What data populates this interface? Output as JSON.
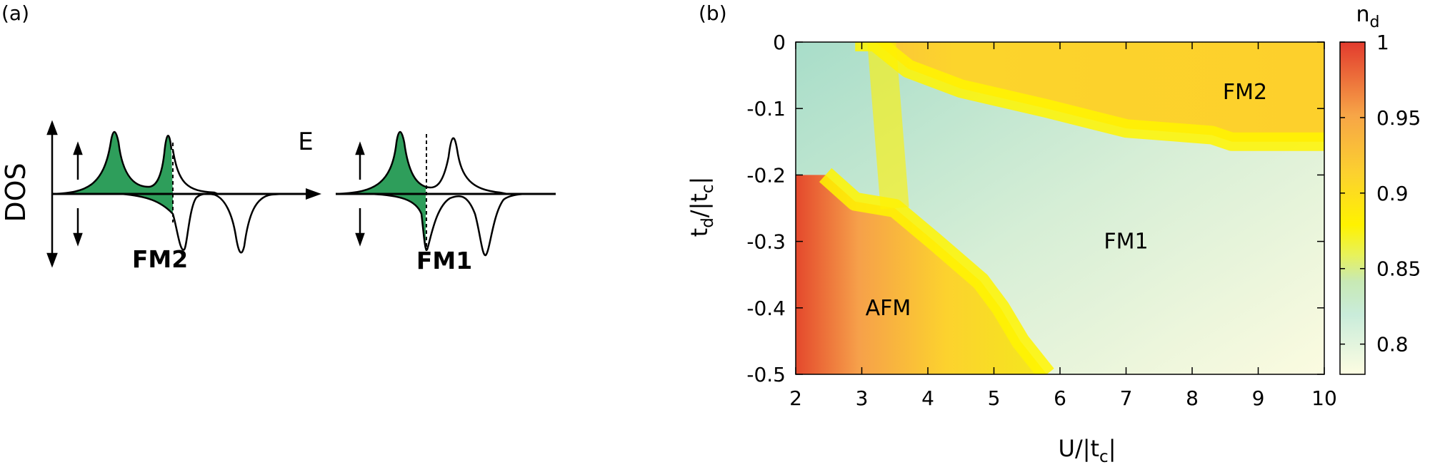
{
  "panel_a": {
    "label": "(a)",
    "y_axis_label": "DOS",
    "x_axis_label": "E",
    "diagrams": [
      "FM2",
      "FM1"
    ],
    "colors": {
      "fill": "#2e9e5b",
      "stroke": "#000000"
    }
  },
  "panel_b": {
    "label": "(b)",
    "xlabel": "U/|t",
    "xlabel_sub": "c",
    "xlabel_end": "|",
    "ylabel": "t",
    "ylabel_sub1": "d",
    "ylabel_mid": "/|t",
    "ylabel_sub2": "c",
    "ylabel_end": "|",
    "colorbar_label": "n",
    "colorbar_label_sub": "d",
    "regions": [
      "FM2",
      "FM1",
      "AFM"
    ]
  },
  "chart_data": {
    "type": "heatmap",
    "x": [
      2,
      3,
      4,
      5,
      6,
      7,
      8,
      9,
      10
    ],
    "y": [
      0,
      -0.1,
      -0.2,
      -0.3,
      -0.4,
      -0.5
    ],
    "xlim": [
      2,
      10
    ],
    "ylim": [
      -0.5,
      0
    ],
    "x_ticks": [
      "2",
      "3",
      "4",
      "5",
      "6",
      "7",
      "8",
      "9",
      "10"
    ],
    "y_ticks": [
      "0",
      "-0.1",
      "-0.2",
      "-0.3",
      "-0.4",
      "-0.5"
    ],
    "colorbar": {
      "min": 0.78,
      "max": 1.0,
      "ticks": [
        "0.8",
        "0.85",
        "0.9",
        "0.95",
        "1"
      ]
    },
    "boundaries": {
      "AFM_FM1": [
        [
          2.45,
          -0.2
        ],
        [
          2.9,
          -0.24
        ],
        [
          3.5,
          -0.25
        ],
        [
          4.1,
          -0.3
        ],
        [
          4.8,
          -0.36
        ],
        [
          5.1,
          -0.4
        ],
        [
          5.4,
          -0.45
        ],
        [
          5.8,
          -0.5
        ]
      ],
      "FM2_FM1": [
        [
          3.2,
          0
        ],
        [
          3.7,
          -0.04
        ],
        [
          4.5,
          -0.07
        ],
        [
          5.8,
          -0.1
        ],
        [
          7.0,
          -0.13
        ],
        [
          8.3,
          -0.14
        ],
        [
          8.6,
          -0.15
        ],
        [
          10,
          -0.15
        ]
      ]
    },
    "region_values": {
      "FM2": 0.89,
      "AFM": 0.91,
      "FM1": 0.8
    }
  }
}
